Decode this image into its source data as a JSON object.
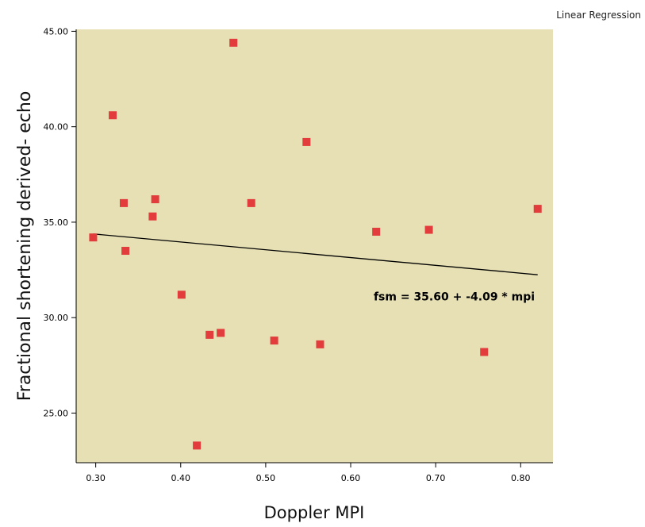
{
  "corner_label": "Linear Regression",
  "chart_data": {
    "type": "scatter",
    "xlabel": "Doppler MPI",
    "ylabel": "Fractional shortening derived- echo",
    "xlim": [
      0.277,
      0.838
    ],
    "ylim": [
      22.4,
      45.1
    ],
    "x_ticks": [
      "0.30",
      "0.40",
      "0.50",
      "0.60",
      "0.70",
      "0.80"
    ],
    "y_ticks": [
      "25.00",
      "30.00",
      "35.00",
      "40.00",
      "45.00"
    ],
    "grid": false,
    "plot_background": "#e6e0b4",
    "marker_color": "#e23c3c",
    "series": [
      {
        "x": [
          0.297,
          0.32,
          0.333,
          0.335,
          0.367,
          0.37,
          0.401,
          0.419,
          0.434,
          0.447,
          0.462,
          0.483,
          0.51,
          0.548,
          0.564,
          0.63,
          0.692,
          0.757,
          0.82
        ],
        "y": [
          34.2,
          40.6,
          36.0,
          33.5,
          35.3,
          36.2,
          31.2,
          23.3,
          29.1,
          29.2,
          44.4,
          36.0,
          28.8,
          39.2,
          28.6,
          34.5,
          34.6,
          28.2,
          35.7
        ]
      }
    ],
    "fit_line": {
      "intercept": 35.6,
      "slope": -4.09,
      "x_range": [
        0.297,
        0.82
      ],
      "color": "#000000",
      "equation_label": "fsm = 35.60 + -4.09 * mpi",
      "label_position": {
        "x": 0.627,
        "y": 30.9
      }
    }
  }
}
